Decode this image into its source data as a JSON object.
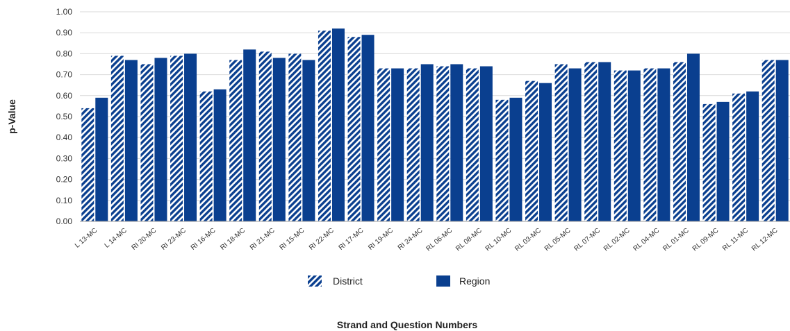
{
  "colors": {
    "series": "#0a3f8f",
    "gridline": "#d9d9d9",
    "axis": "#9a9a9a"
  },
  "chart_data": {
    "type": "bar",
    "xlabel": "Strand and Question Numbers",
    "ylabel": "p-Value",
    "ylim": [
      0,
      1
    ],
    "yticks": [
      "0.00",
      "0.10",
      "0.20",
      "0.30",
      "0.40",
      "0.50",
      "0.60",
      "0.70",
      "0.80",
      "0.90",
      "1.00"
    ],
    "grid": true,
    "legend_position": "bottom",
    "categories": [
      "L 13-MC",
      "L 14-MC",
      "RI 20-MC",
      "RI 23-MC",
      "RI 16-MC",
      "RI 18-MC",
      "RI 21-MC",
      "RI 15-MC",
      "RI 22-MC",
      "RI 17-MC",
      "RI 19-MC",
      "RI 24-MC",
      "RL 06-MC",
      "RL 08-MC",
      "RL 10-MC",
      "RL 03-MC",
      "RL 05-MC",
      "RL 07-MC",
      "RL 02-MC",
      "RL 04-MC",
      "RL 01-MC",
      "RL 09-MC",
      "RL 11-MC",
      "RL 12-MC"
    ],
    "series": [
      {
        "name": "District",
        "pattern": "hatched",
        "values": [
          0.54,
          0.79,
          0.75,
          0.79,
          0.62,
          0.77,
          0.81,
          0.8,
          0.91,
          0.88,
          0.73,
          0.73,
          0.74,
          0.73,
          0.58,
          0.67,
          0.75,
          0.76,
          0.72,
          0.73,
          0.76,
          0.56,
          0.61,
          0.77
        ]
      },
      {
        "name": "Region",
        "pattern": "solid",
        "values": [
          0.59,
          0.77,
          0.78,
          0.8,
          0.63,
          0.82,
          0.78,
          0.77,
          0.92,
          0.89,
          0.73,
          0.75,
          0.75,
          0.74,
          0.59,
          0.66,
          0.73,
          0.76,
          0.72,
          0.73,
          0.8,
          0.57,
          0.62,
          0.77
        ]
      }
    ]
  }
}
